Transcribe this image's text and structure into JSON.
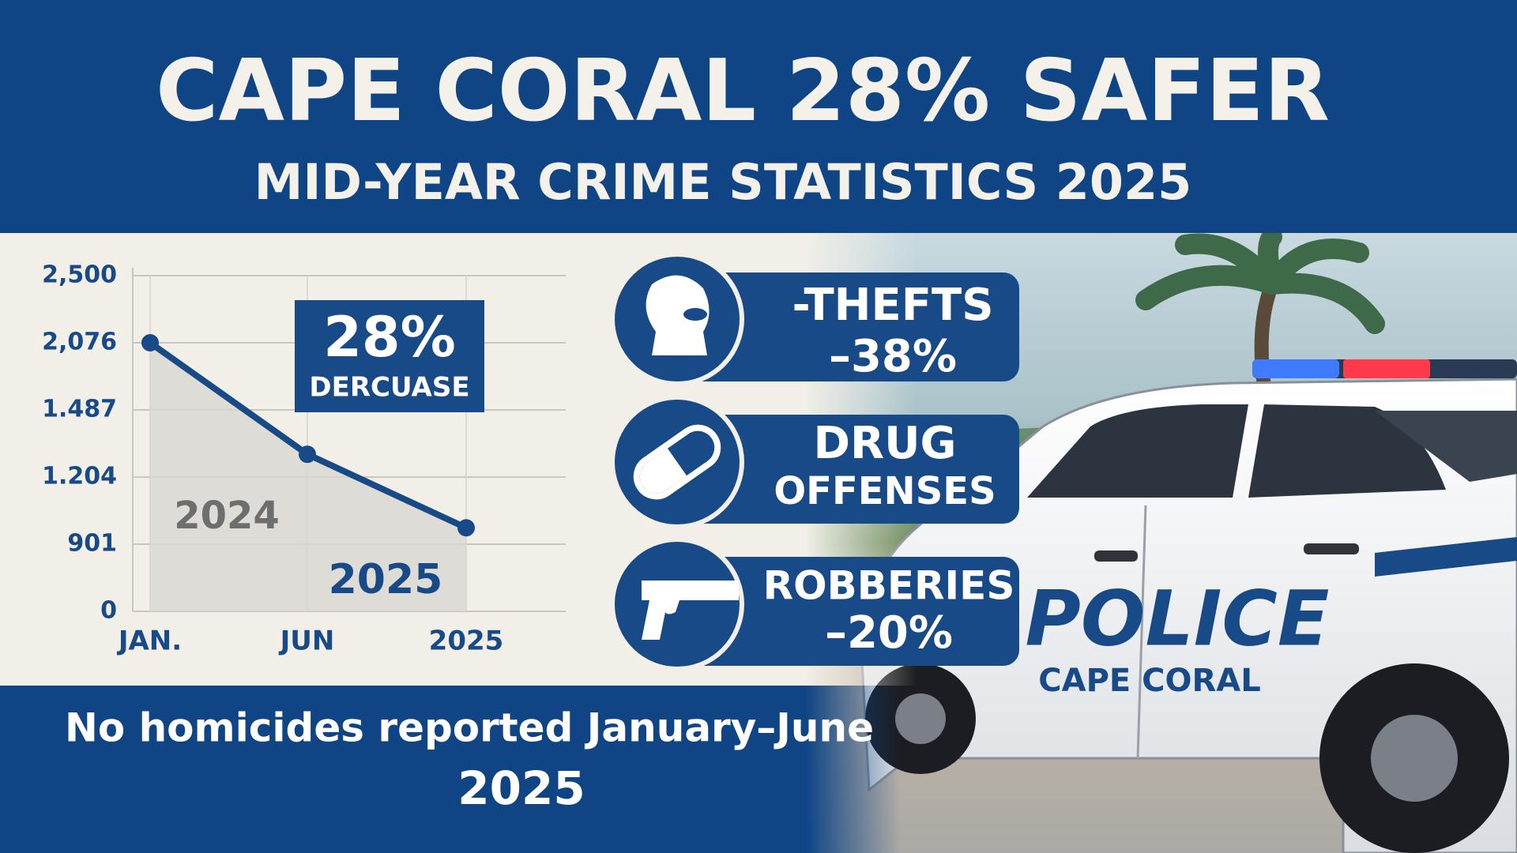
{
  "header": {
    "title": "CAPE CORAL 28% SAFER",
    "subtitle": "MID-YEAR CRIME STATISTICS 2025"
  },
  "chart_data": {
    "type": "line",
    "categories": [
      "JAN.",
      "JUN",
      "2025"
    ],
    "values": [
      2076,
      1300,
      975
    ],
    "color": "#174a86",
    "ylim": [
      0,
      2500
    ],
    "yticks": [
      0,
      901,
      {
        "value": 1204,
        "label": "1.204"
      },
      {
        "value": 1487,
        "label": "1.487"
      },
      {
        "value": 2076,
        "label": "2,076"
      },
      {
        "value": 2500,
        "label": "2,500"
      }
    ],
    "grid": true,
    "annotations": [
      "2024",
      "2025"
    ],
    "callout": {
      "title": "28%",
      "text": "DERCUASE"
    }
  },
  "stats": [
    {
      "lines": [
        "-THEFTS",
        "–38%"
      ]
    },
    {
      "lines": [
        "DRUG",
        "OFFENSES"
      ]
    },
    {
      "lines": [
        "ROBBERIES",
        "–20%"
      ]
    }
  ],
  "footer": {
    "lines": [
      "No homicides reported January–June",
      "2025"
    ]
  },
  "photo": {
    "car_text": "POLICE",
    "car_subtext": "CAPE CORAL"
  }
}
